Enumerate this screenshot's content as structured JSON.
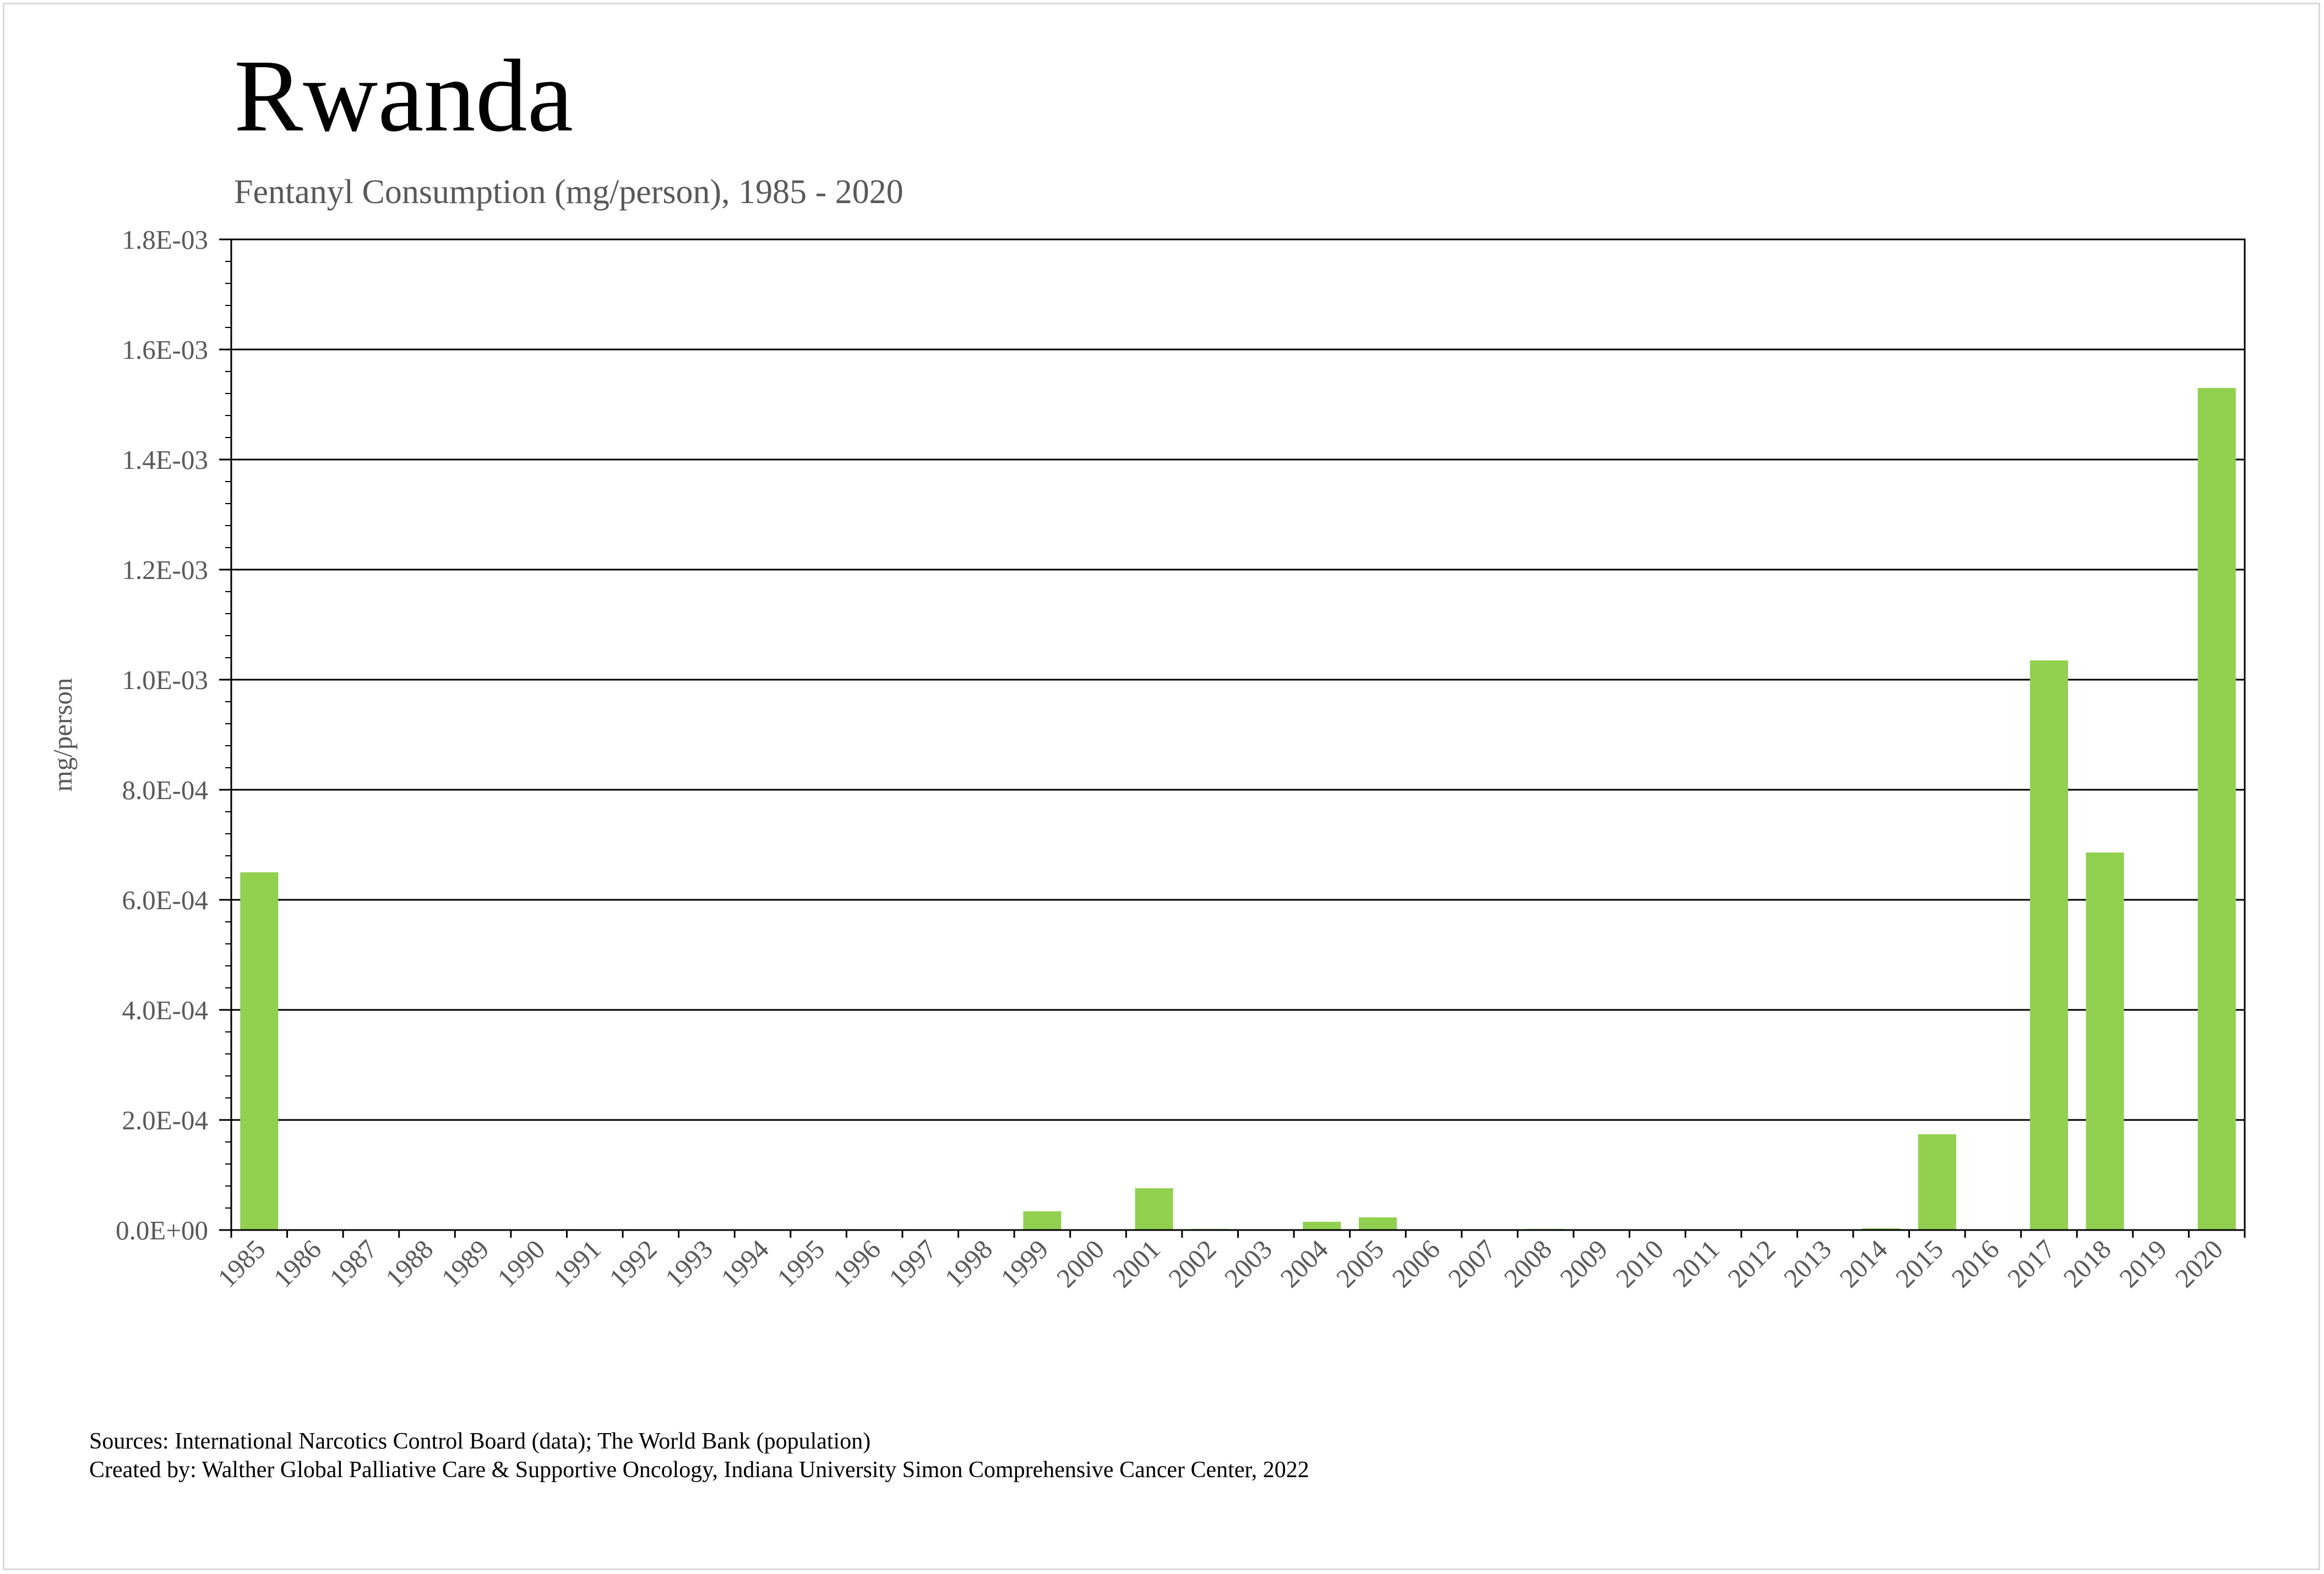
{
  "title": "Rwanda",
  "subtitle": "Fentanyl Consumption (mg/person), 1985 - 2020",
  "footer": {
    "sources": "Sources: International Narcotics Control Board (data); The World Bank (population)",
    "created_by": "Created by: Walther Global Palliative Care & Supportive Oncology, Indiana University Simon Comprehensive Cancer Center, 2022"
  },
  "chart_data": {
    "type": "bar",
    "title": "Rwanda",
    "subtitle": "Fentanyl Consumption (mg/person), 1985 - 2020",
    "xlabel": "",
    "ylabel": "mg/person",
    "ylim": [
      0,
      0.0018
    ],
    "yticks": [
      0,
      0.0002,
      0.0004,
      0.0006,
      0.0008,
      0.001,
      0.0012,
      0.0014,
      0.0016,
      0.0018
    ],
    "ytick_labels": [
      "0.0E+00",
      "2.0E-04",
      "4.0E-04",
      "6.0E-04",
      "8.0E-04",
      "1.0E-03",
      "1.2E-03",
      "1.4E-03",
      "1.6E-03",
      "1.8E-03"
    ],
    "grid": true,
    "bar_color": "#92d050",
    "categories": [
      "1985",
      "1986",
      "1987",
      "1988",
      "1989",
      "1990",
      "1991",
      "1992",
      "1993",
      "1994",
      "1995",
      "1996",
      "1997",
      "1998",
      "1999",
      "2000",
      "2001",
      "2002",
      "2003",
      "2004",
      "2005",
      "2006",
      "2007",
      "2008",
      "2009",
      "2010",
      "2011",
      "2012",
      "2013",
      "2014",
      "2015",
      "2016",
      "2017",
      "2018",
      "2019",
      "2020"
    ],
    "values": [
      0.00065,
      0,
      0,
      0,
      0,
      0,
      0,
      0,
      0,
      0,
      0,
      0,
      0,
      0,
      3.4e-05,
      0,
      7.6e-05,
      2e-06,
      0,
      1.5e-05,
      2.3e-05,
      0,
      0,
      2e-06,
      0,
      0,
      0,
      0,
      0,
      3e-06,
      0.000174,
      0,
      0.001035,
      0.000686,
      0,
      0.00153
    ]
  }
}
